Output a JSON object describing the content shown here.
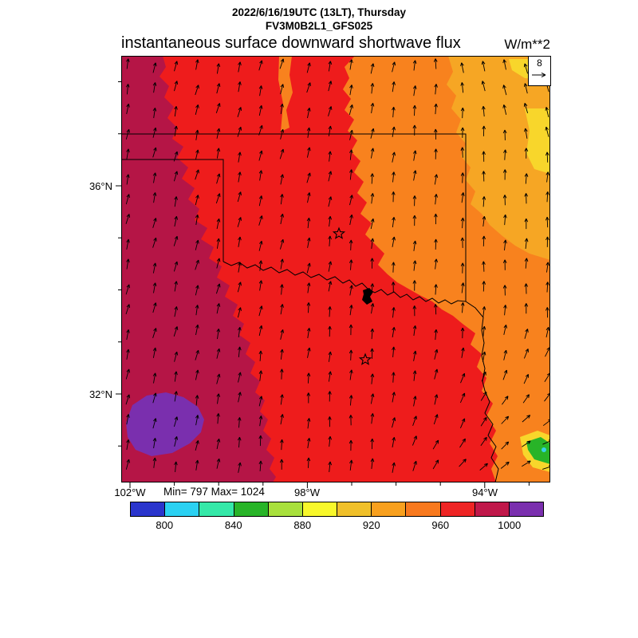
{
  "header": {
    "line1": "2022/6/16/19UTC (13LT), Thursday",
    "line2": "FV3M0B2L1_GFS025",
    "title": "instantaneous surface downward shortwave flux",
    "units": "W/m**2"
  },
  "reference_vector": {
    "value": "8"
  },
  "stats": {
    "min_max": "Min= 797 Max= 1024"
  },
  "axes": {
    "lat_labels": [
      "36°N",
      "32°N"
    ],
    "lon_labels": [
      "102°W",
      "98°W",
      "94°W"
    ]
  },
  "colorbar": {
    "tick_labels": [
      "800",
      "840",
      "880",
      "920",
      "960",
      "1000"
    ],
    "segment_colors": [
      "#2a35cc",
      "#2bd1f2",
      "#35e8a8",
      "#28b428",
      "#a8e03c",
      "#f8f82b",
      "#f0c02a",
      "#f8a01e",
      "#f8791e",
      "#ee2424",
      "#c0184a",
      "#7a2fae"
    ]
  },
  "map_colors": {
    "base_red": "#ee1c1c",
    "maroon": "#b51546",
    "purple": "#7a2fae",
    "orange": "#f8821e",
    "gold": "#f6a624",
    "yellow": "#f8d62b",
    "green": "#28b428",
    "cyan": "#35d3e8",
    "border": "#000000"
  },
  "chart_data": {
    "type": "heatmap",
    "title": "instantaneous surface downward shortwave flux",
    "units": "W/m**2",
    "valid_time": "2022/6/16/19UTC (13LT), Thursday",
    "model": "FV3M0B2L1_GFS025",
    "min": 797,
    "max": 1024,
    "colorbar_ticks": [
      800,
      840,
      880,
      920,
      960,
      1000
    ],
    "reference_vector_mps": 8,
    "lat_ticks": [
      "36°N",
      "32°N"
    ],
    "lon_ticks": [
      "102°W",
      "98°W",
      "94°W"
    ]
  }
}
